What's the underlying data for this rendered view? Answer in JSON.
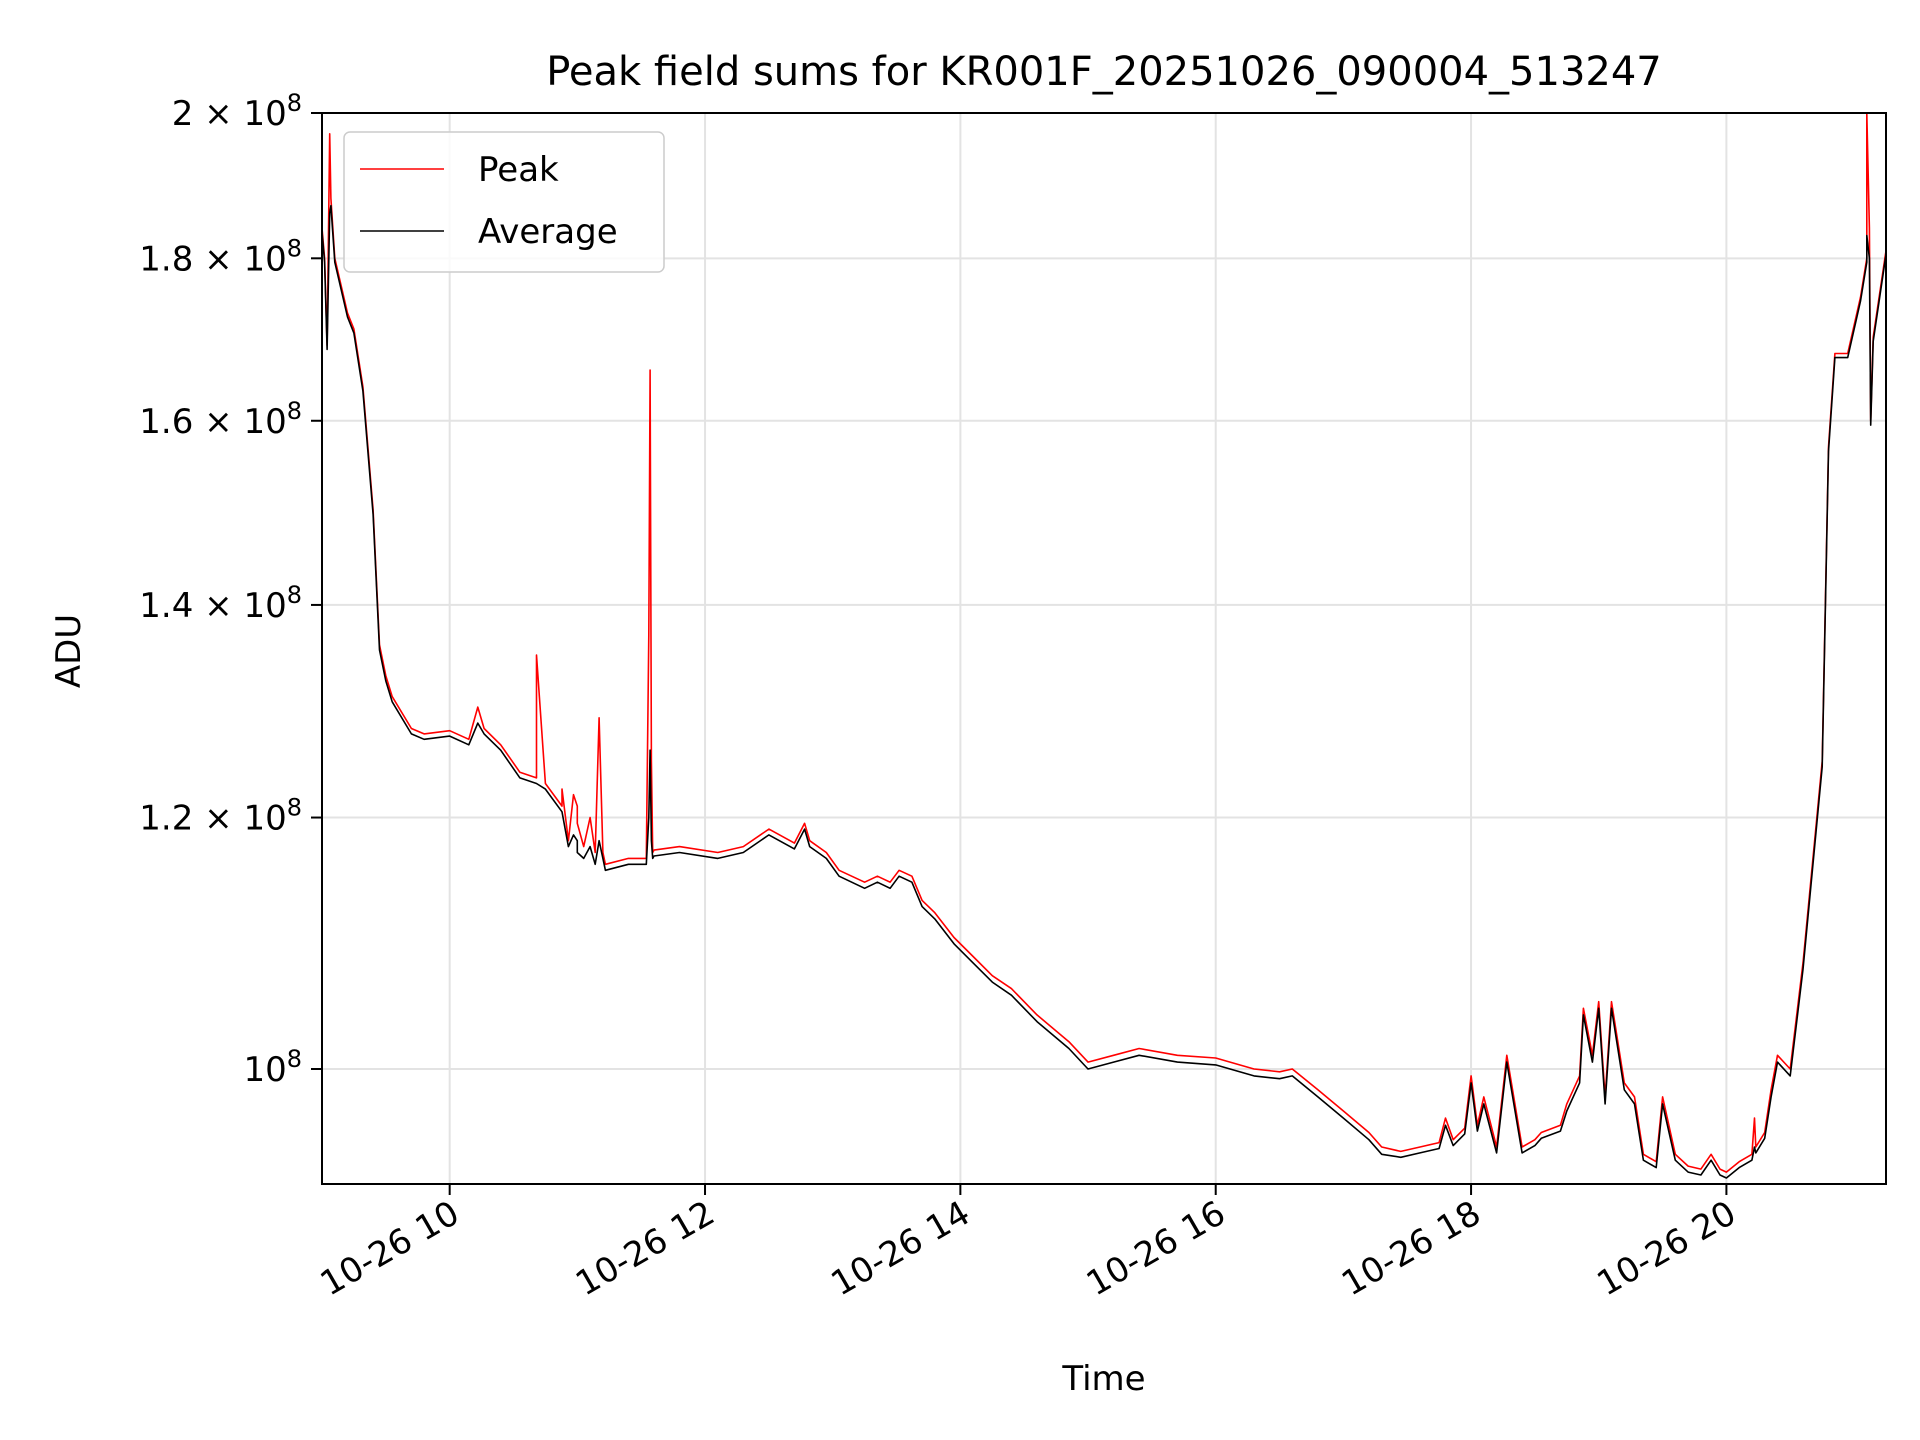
{
  "chart_data": {
    "type": "line",
    "title": "Peak field sums for KR001F_20251026_090004_513247",
    "xlabel": "Time",
    "ylabel": "ADU",
    "x_unit": "hours (2025-10-26, local clock)",
    "xlim": [
      9.0,
      21.25
    ],
    "ylim": [
      92000000,
      200000000
    ],
    "yscale": "log",
    "grid": true,
    "legend_position": "top-left",
    "x_ticks": [
      {
        "value": 10,
        "label": "10-26 10"
      },
      {
        "value": 12,
        "label": "10-26 12"
      },
      {
        "value": 14,
        "label": "10-26 14"
      },
      {
        "value": 16,
        "label": "10-26 16"
      },
      {
        "value": 18,
        "label": "10-26 18"
      },
      {
        "value": 20,
        "label": "10-26 20"
      }
    ],
    "y_ticks": [
      {
        "value": 100000000,
        "base": "10",
        "exp": "8"
      },
      {
        "value": 120000000,
        "base": "1.2 × 10",
        "exp": "8"
      },
      {
        "value": 140000000,
        "base": "1.4 × 10",
        "exp": "8"
      },
      {
        "value": 160000000,
        "base": "1.6 × 10",
        "exp": "8"
      },
      {
        "value": 180000000,
        "base": "1.8 × 10",
        "exp": "8"
      },
      {
        "value": 200000000,
        "base": "2 × 10",
        "exp": "8"
      }
    ],
    "series": [
      {
        "name": "Peak",
        "color": "#ff0000",
        "x": [
          9.0,
          9.02,
          9.04,
          9.06,
          9.07,
          9.1,
          9.2,
          9.25,
          9.32,
          9.4,
          9.45,
          9.5,
          9.55,
          9.7,
          9.8,
          10.0,
          10.15,
          10.22,
          10.27,
          10.4,
          10.55,
          10.68,
          10.68,
          10.75,
          10.88,
          10.88,
          10.93,
          10.97,
          11.0,
          11.0,
          11.05,
          11.1,
          11.14,
          11.17,
          11.2,
          11.22,
          11.4,
          11.54,
          11.56,
          11.57,
          11.58,
          11.59,
          11.6,
          11.8,
          12.1,
          12.3,
          12.5,
          12.7,
          12.78,
          12.82,
          12.95,
          13.05,
          13.25,
          13.35,
          13.45,
          13.52,
          13.62,
          13.7,
          13.8,
          13.95,
          14.1,
          14.25,
          14.4,
          14.6,
          14.85,
          15.0,
          15.2,
          15.4,
          15.7,
          16.0,
          16.3,
          16.5,
          16.6,
          16.8,
          17.0,
          17.2,
          17.3,
          17.45,
          17.6,
          17.75,
          17.8,
          17.86,
          17.95,
          18.0,
          18.05,
          18.1,
          18.2,
          18.28,
          18.4,
          18.5,
          18.55,
          18.7,
          18.75,
          18.85,
          18.88,
          18.95,
          19.0,
          19.05,
          19.1,
          19.2,
          19.28,
          19.35,
          19.45,
          19.5,
          19.6,
          19.7,
          19.8,
          19.88,
          19.95,
          20.0,
          20.1,
          20.2,
          20.22,
          20.23,
          20.3,
          20.35,
          20.4,
          20.5,
          20.6,
          20.75,
          20.8,
          20.85,
          20.95,
          21.05,
          21.1,
          21.1,
          21.12,
          21.13,
          21.15,
          21.25
        ],
        "values": [
          184000000,
          180000000,
          169000000,
          197000000,
          188000000,
          180000000,
          173000000,
          171000000,
          164000000,
          150000000,
          136000000,
          133000000,
          131000000,
          128000000,
          127500000,
          127800000,
          127000000,
          130000000,
          128000000,
          126500000,
          124000000,
          123500000,
          135000000,
          123000000,
          121000000,
          122500000,
          118000000,
          122000000,
          121000000,
          119500000,
          117500000,
          120000000,
          117000000,
          129000000,
          117000000,
          116000000,
          116500000,
          116500000,
          137000000,
          166000000,
          125000000,
          117000000,
          117200000,
          117500000,
          117000000,
          117500000,
          119000000,
          117800000,
          119500000,
          118000000,
          117000000,
          115500000,
          114500000,
          115000000,
          114500000,
          115500000,
          115000000,
          113000000,
          112000000,
          110000000,
          108500000,
          107000000,
          106000000,
          104000000,
          102000000,
          100500000,
          101000000,
          101500000,
          101000000,
          100800000,
          100000000,
          99800000,
          100000000,
          98500000,
          97000000,
          95500000,
          94500000,
          94200000,
          94500000,
          94800000,
          96500000,
          95000000,
          95800000,
          99500000,
          96000000,
          98000000,
          94500000,
          101000000,
          94500000,
          95000000,
          95500000,
          96000000,
          97500000,
          99500000,
          104500000,
          101000000,
          105000000,
          98000000,
          105000000,
          99000000,
          98000000,
          94000000,
          93500000,
          98000000,
          94000000,
          93200000,
          93000000,
          94000000,
          93000000,
          92800000,
          93500000,
          94000000,
          96500000,
          94500000,
          95500000,
          98500000,
          101000000,
          100000000,
          108000000,
          125000000,
          157000000,
          168000000,
          168000000,
          175000000,
          180000000,
          200000000,
          184000000,
          160000000,
          170000000,
          181000000
        ]
      },
      {
        "name": "Average",
        "color": "#000000",
        "x": [
          9.0,
          9.02,
          9.04,
          9.06,
          9.07,
          9.1,
          9.2,
          9.25,
          9.32,
          9.4,
          9.45,
          9.5,
          9.55,
          9.7,
          9.8,
          10.0,
          10.15,
          10.22,
          10.27,
          10.4,
          10.55,
          10.68,
          10.68,
          10.75,
          10.88,
          10.88,
          10.93,
          10.97,
          11.0,
          11.0,
          11.05,
          11.1,
          11.14,
          11.17,
          11.2,
          11.22,
          11.4,
          11.54,
          11.56,
          11.57,
          11.58,
          11.59,
          11.6,
          11.8,
          12.1,
          12.3,
          12.5,
          12.7,
          12.78,
          12.82,
          12.95,
          13.05,
          13.25,
          13.35,
          13.45,
          13.52,
          13.62,
          13.7,
          13.8,
          13.95,
          14.1,
          14.25,
          14.4,
          14.6,
          14.85,
          15.0,
          15.2,
          15.4,
          15.7,
          16.0,
          16.3,
          16.5,
          16.6,
          16.8,
          17.0,
          17.2,
          17.3,
          17.45,
          17.6,
          17.75,
          17.8,
          17.86,
          17.95,
          18.0,
          18.05,
          18.1,
          18.2,
          18.28,
          18.4,
          18.5,
          18.55,
          18.7,
          18.75,
          18.85,
          18.88,
          18.95,
          19.0,
          19.05,
          19.1,
          19.2,
          19.28,
          19.35,
          19.45,
          19.5,
          19.6,
          19.7,
          19.8,
          19.88,
          19.95,
          20.0,
          20.1,
          20.2,
          20.22,
          20.23,
          20.3,
          20.35,
          20.4,
          20.5,
          20.6,
          20.75,
          20.8,
          20.85,
          20.95,
          21.05,
          21.1,
          21.1,
          21.12,
          21.13,
          21.15,
          21.25
        ],
        "values": [
          183500000,
          179500000,
          168500000,
          186000000,
          187000000,
          179500000,
          172500000,
          170500000,
          163500000,
          149500000,
          135500000,
          132500000,
          130500000,
          127500000,
          127000000,
          127300000,
          126500000,
          128500000,
          127500000,
          126000000,
          123500000,
          123000000,
          123000000,
          122500000,
          120500000,
          120500000,
          117500000,
          118500000,
          118000000,
          117000000,
          116500000,
          117500000,
          116000000,
          118000000,
          116500000,
          115500000,
          116000000,
          116000000,
          120000000,
          126000000,
          118000000,
          116500000,
          116700000,
          117000000,
          116500000,
          117000000,
          118500000,
          117300000,
          119000000,
          117500000,
          116500000,
          115000000,
          114000000,
          114500000,
          114000000,
          115000000,
          114500000,
          112500000,
          111500000,
          109500000,
          108000000,
          106500000,
          105500000,
          103500000,
          101500000,
          100000000,
          100500000,
          101000000,
          100500000,
          100300000,
          99500000,
          99300000,
          99500000,
          98000000,
          96500000,
          95000000,
          94000000,
          93800000,
          94100000,
          94400000,
          96000000,
          94600000,
          95400000,
          99000000,
          95600000,
          97500000,
          94100000,
          100500000,
          94100000,
          94600000,
          95100000,
          95600000,
          97000000,
          99000000,
          104000000,
          100500000,
          104500000,
          97500000,
          104500000,
          98500000,
          97500000,
          93600000,
          93100000,
          97500000,
          93600000,
          92800000,
          92600000,
          93600000,
          92600000,
          92400000,
          93100000,
          93600000,
          94500000,
          94100000,
          95100000,
          98000000,
          100500000,
          99500000,
          107500000,
          124500000,
          156500000,
          167500000,
          167500000,
          174500000,
          179500000,
          183000000,
          180000000,
          159500000,
          169500000,
          180500000
        ]
      }
    ]
  }
}
